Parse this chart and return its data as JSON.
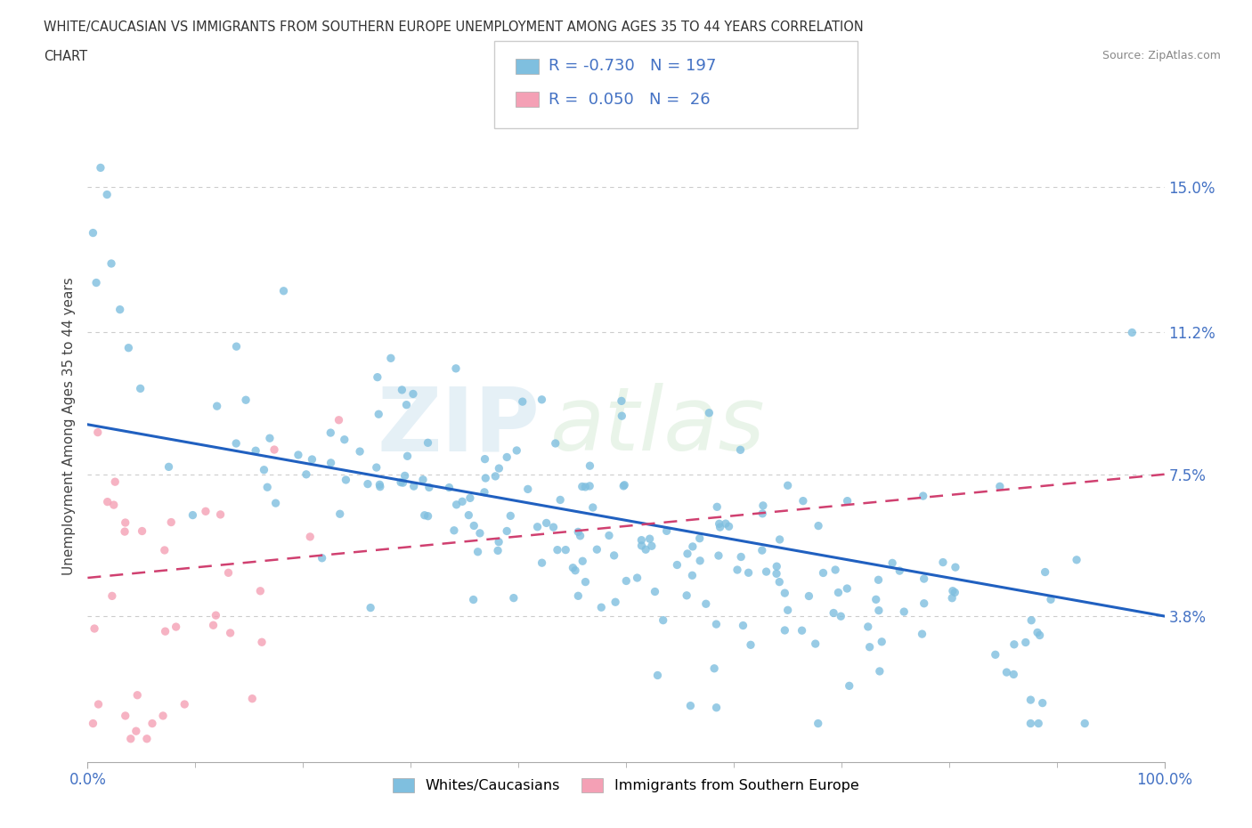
{
  "title_line1": "WHITE/CAUCASIAN VS IMMIGRANTS FROM SOUTHERN EUROPE UNEMPLOYMENT AMONG AGES 35 TO 44 YEARS CORRELATION",
  "title_line2": "CHART",
  "source": "Source: ZipAtlas.com",
  "ylabel": "Unemployment Among Ages 35 to 44 years",
  "xmin": 0.0,
  "xmax": 1.0,
  "ymin": 0.0,
  "ymax": 0.175,
  "yticks": [
    0.038,
    0.075,
    0.112,
    0.15
  ],
  "ytick_labels": [
    "3.8%",
    "7.5%",
    "11.2%",
    "15.0%"
  ],
  "xtick_labels": [
    "0.0%",
    "100.0%"
  ],
  "blue_color": "#7fbfdf",
  "pink_color": "#f4a0b5",
  "blue_line_color": "#2060c0",
  "pink_line_color": "#d04070",
  "R_blue": -0.73,
  "N_blue": 197,
  "R_pink": 0.05,
  "N_pink": 26,
  "watermark_zip": "ZIP",
  "watermark_atlas": "atlas",
  "legend_label_blue": "Whites/Caucasians",
  "legend_label_pink": "Immigrants from Southern Europe",
  "grid_color": "#cccccc",
  "bg_color": "#ffffff",
  "label_color": "#4472c4",
  "scatter_alpha": 0.8,
  "blue_trend_start_y": 0.088,
  "blue_trend_end_y": 0.038,
  "pink_trend_start_y": 0.048,
  "pink_trend_end_y": 0.075
}
